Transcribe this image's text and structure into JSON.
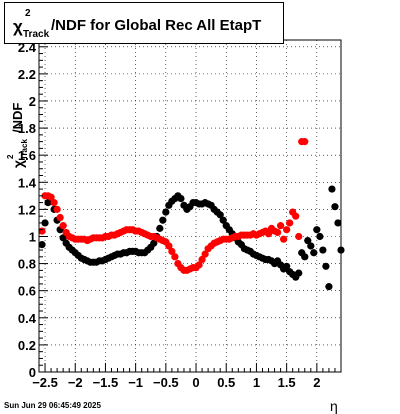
{
  "title": {
    "symbol": "χ",
    "superscript": "2",
    "subscript": "Track",
    "text": "/NDF for Global Rec All EtapT"
  },
  "footer": "Sun Jun 29 06:45:49 2025",
  "colors": {
    "black_series": "#000000",
    "red_series": "#ff0000",
    "frame": "#000000",
    "grid": "#000000"
  },
  "chart_data": {
    "type": "scatter",
    "xlabel": "η",
    "ylabel": {
      "symbol": "χ",
      "superscript": "2",
      "subscript": "Track",
      "text": "/NDF"
    },
    "xlim": [
      -2.6,
      2.4
    ],
    "ylim": [
      0,
      2.45
    ],
    "x_ticks": [
      -2.5,
      -2,
      -1.5,
      -1,
      -0.5,
      0,
      0.5,
      1,
      1.5,
      2
    ],
    "x_tick_labels": [
      "−2.5",
      "−2",
      "−1.5",
      "−1",
      "−0.5",
      "0",
      "0.5",
      "1",
      "1.5",
      "2"
    ],
    "y_ticks": [
      0,
      0.2,
      0.4,
      0.6,
      0.8,
      1,
      1.2,
      1.4,
      1.6,
      1.8,
      2,
      2.2,
      2.4
    ],
    "y_tick_labels": [
      "0",
      "0.2",
      "0.4",
      "0.6",
      "0.8",
      "1",
      "1.2",
      "1.4",
      "1.6",
      "1.8",
      "2",
      "2.2",
      "2.4"
    ],
    "grid": true,
    "series": [
      {
        "color": "#000000",
        "points": [
          [
            -2.55,
            0.94
          ],
          [
            -2.5,
            1.1
          ],
          [
            -2.45,
            1.25
          ],
          [
            -2.4,
            1.26
          ],
          [
            -2.35,
            1.2
          ],
          [
            -2.3,
            1.12
          ],
          [
            -2.25,
            1.05
          ],
          [
            -2.2,
            0.99
          ],
          [
            -2.15,
            0.95
          ],
          [
            -2.1,
            0.92
          ],
          [
            -2.05,
            0.9
          ],
          [
            -2.0,
            0.88
          ],
          [
            -1.95,
            0.86
          ],
          [
            -1.9,
            0.84
          ],
          [
            -1.85,
            0.83
          ],
          [
            -1.8,
            0.82
          ],
          [
            -1.75,
            0.81
          ],
          [
            -1.7,
            0.81
          ],
          [
            -1.65,
            0.81
          ],
          [
            -1.6,
            0.82
          ],
          [
            -1.55,
            0.82
          ],
          [
            -1.5,
            0.83
          ],
          [
            -1.45,
            0.84
          ],
          [
            -1.4,
            0.85
          ],
          [
            -1.35,
            0.86
          ],
          [
            -1.3,
            0.87
          ],
          [
            -1.25,
            0.87
          ],
          [
            -1.2,
            0.88
          ],
          [
            -1.15,
            0.88
          ],
          [
            -1.1,
            0.89
          ],
          [
            -1.05,
            0.89
          ],
          [
            -1.0,
            0.89
          ],
          [
            -0.95,
            0.88
          ],
          [
            -0.9,
            0.88
          ],
          [
            -0.85,
            0.88
          ],
          [
            -0.8,
            0.9
          ],
          [
            -0.75,
            0.92
          ],
          [
            -0.7,
            0.95
          ],
          [
            -0.65,
            1.0
          ],
          [
            -0.6,
            1.06
          ],
          [
            -0.55,
            1.12
          ],
          [
            -0.5,
            1.18
          ],
          [
            -0.45,
            1.23
          ],
          [
            -0.4,
            1.26
          ],
          [
            -0.35,
            1.28
          ],
          [
            -0.3,
            1.3
          ],
          [
            -0.25,
            1.28
          ],
          [
            -0.2,
            1.23
          ],
          [
            -0.15,
            1.2
          ],
          [
            -0.1,
            1.22
          ],
          [
            -0.05,
            1.25
          ],
          [
            0.0,
            1.25
          ],
          [
            0.05,
            1.24
          ],
          [
            0.1,
            1.24
          ],
          [
            0.15,
            1.25
          ],
          [
            0.2,
            1.24
          ],
          [
            0.25,
            1.23
          ],
          [
            0.3,
            1.2
          ],
          [
            0.35,
            1.18
          ],
          [
            0.4,
            1.16
          ],
          [
            0.45,
            1.12
          ],
          [
            0.5,
            1.08
          ],
          [
            0.55,
            1.05
          ],
          [
            0.6,
            1.02
          ],
          [
            0.65,
            0.99
          ],
          [
            0.7,
            0.96
          ],
          [
            0.75,
            0.94
          ],
          [
            0.8,
            0.91
          ],
          [
            0.85,
            0.9
          ],
          [
            0.9,
            0.89
          ],
          [
            0.95,
            0.87
          ],
          [
            1.0,
            0.86
          ],
          [
            1.05,
            0.85
          ],
          [
            1.1,
            0.84
          ],
          [
            1.15,
            0.83
          ],
          [
            1.2,
            0.83
          ],
          [
            1.25,
            0.82
          ],
          [
            1.3,
            0.8
          ],
          [
            1.35,
            0.82
          ],
          [
            1.4,
            0.79
          ],
          [
            1.45,
            0.76
          ],
          [
            1.5,
            0.78
          ],
          [
            1.55,
            0.74
          ],
          [
            1.6,
            0.72
          ],
          [
            1.65,
            0.7
          ],
          [
            1.7,
            0.73
          ],
          [
            1.75,
            0.88
          ],
          [
            1.8,
            0.85
          ],
          [
            1.85,
            0.97
          ],
          [
            1.9,
            0.93
          ],
          [
            1.95,
            0.88
          ],
          [
            2.0,
            1.05
          ],
          [
            2.05,
            1.0
          ],
          [
            2.1,
            0.9
          ],
          [
            2.15,
            0.78
          ],
          [
            2.2,
            0.63
          ],
          [
            2.25,
            1.35
          ],
          [
            2.3,
            1.22
          ],
          [
            2.35,
            1.1
          ],
          [
            2.4,
            0.9
          ]
        ]
      },
      {
        "color": "#ff0000",
        "points": [
          [
            -2.55,
            1.04
          ],
          [
            -2.5,
            1.3
          ],
          [
            -2.45,
            1.3
          ],
          [
            -2.4,
            1.29
          ],
          [
            -2.35,
            1.25
          ],
          [
            -2.3,
            1.2
          ],
          [
            -2.25,
            1.14
          ],
          [
            -2.2,
            1.08
          ],
          [
            -2.15,
            1.03
          ],
          [
            -2.1,
            1.0
          ],
          [
            -2.05,
            0.99
          ],
          [
            -2.0,
            0.98
          ],
          [
            -1.95,
            0.98
          ],
          [
            -1.9,
            0.98
          ],
          [
            -1.85,
            0.98
          ],
          [
            -1.8,
            0.97
          ],
          [
            -1.75,
            0.98
          ],
          [
            -1.7,
            0.99
          ],
          [
            -1.65,
            0.99
          ],
          [
            -1.6,
            0.99
          ],
          [
            -1.55,
            0.99
          ],
          [
            -1.5,
            1.0
          ],
          [
            -1.45,
            1.0
          ],
          [
            -1.4,
            1.01
          ],
          [
            -1.35,
            1.01
          ],
          [
            -1.3,
            1.02
          ],
          [
            -1.25,
            1.03
          ],
          [
            -1.2,
            1.04
          ],
          [
            -1.15,
            1.05
          ],
          [
            -1.1,
            1.05
          ],
          [
            -1.05,
            1.05
          ],
          [
            -1.0,
            1.04
          ],
          [
            -0.95,
            1.04
          ],
          [
            -0.9,
            1.03
          ],
          [
            -0.85,
            1.02
          ],
          [
            -0.8,
            1.01
          ],
          [
            -0.75,
            1.0
          ],
          [
            -0.7,
            1.0
          ],
          [
            -0.65,
            0.99
          ],
          [
            -0.6,
            0.98
          ],
          [
            -0.55,
            0.97
          ],
          [
            -0.5,
            0.96
          ],
          [
            -0.45,
            0.93
          ],
          [
            -0.4,
            0.89
          ],
          [
            -0.35,
            0.85
          ],
          [
            -0.3,
            0.8
          ],
          [
            -0.25,
            0.77
          ],
          [
            -0.2,
            0.75
          ],
          [
            -0.15,
            0.75
          ],
          [
            -0.1,
            0.76
          ],
          [
            -0.05,
            0.77
          ],
          [
            0.0,
            0.77
          ],
          [
            0.05,
            0.79
          ],
          [
            0.1,
            0.83
          ],
          [
            0.15,
            0.87
          ],
          [
            0.2,
            0.91
          ],
          [
            0.25,
            0.93
          ],
          [
            0.3,
            0.95
          ],
          [
            0.35,
            0.96
          ],
          [
            0.4,
            0.97
          ],
          [
            0.45,
            0.98
          ],
          [
            0.5,
            0.98
          ],
          [
            0.55,
            0.98
          ],
          [
            0.6,
            0.99
          ],
          [
            0.65,
            1.0
          ],
          [
            0.7,
            1.0
          ],
          [
            0.75,
            1.01
          ],
          [
            0.8,
            1.01
          ],
          [
            0.85,
            1.01
          ],
          [
            0.9,
            1.01
          ],
          [
            0.95,
            1.02
          ],
          [
            1.0,
            1.01
          ],
          [
            1.05,
            1.02
          ],
          [
            1.1,
            1.03
          ],
          [
            1.15,
            1.04
          ],
          [
            1.2,
            1.02
          ],
          [
            1.25,
            1.06
          ],
          [
            1.3,
            1.04
          ],
          [
            1.35,
            1.03
          ],
          [
            1.4,
            1.08
          ],
          [
            1.45,
            0.98
          ],
          [
            1.5,
            1.05
          ],
          [
            1.55,
            1.1
          ],
          [
            1.6,
            1.18
          ],
          [
            1.65,
            1.15
          ],
          [
            1.7,
            1.0
          ],
          [
            1.75,
            1.7
          ],
          [
            1.8,
            1.7
          ]
        ]
      }
    ]
  }
}
